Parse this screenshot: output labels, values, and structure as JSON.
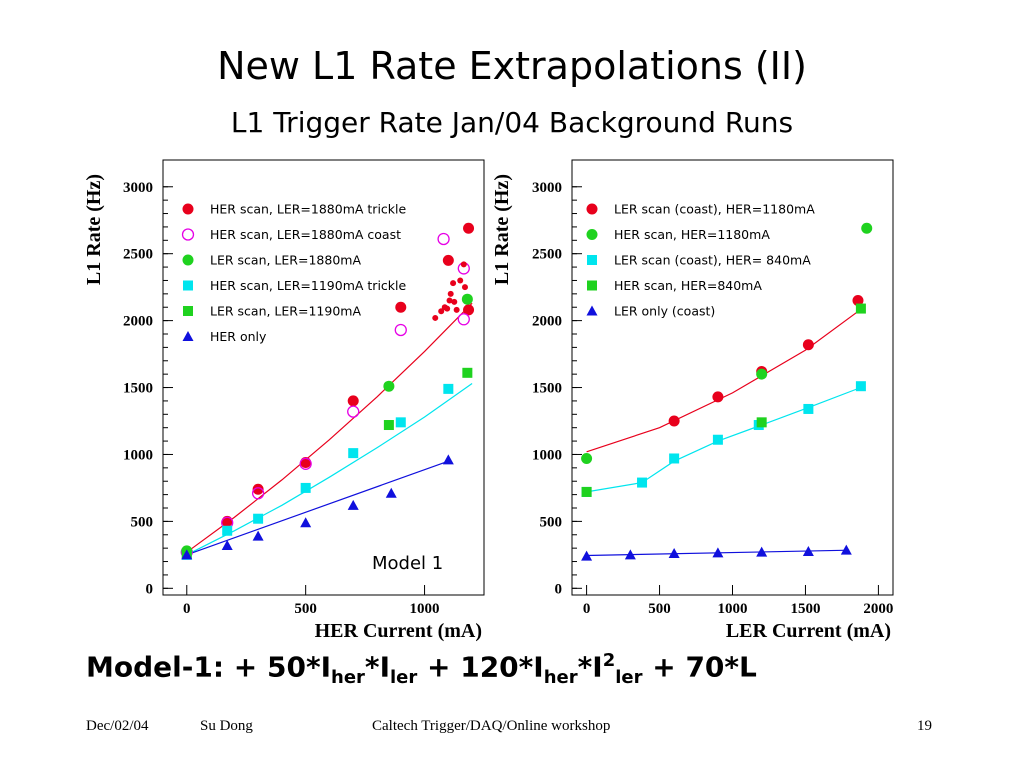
{
  "slide": {
    "title": "New L1 Rate Extrapolations (II)",
    "subtitle": "L1 Trigger Rate Jan/04 Background Runs",
    "formula": {
      "p1": "Model-1:  + 50*I",
      "s1": "her",
      "p2": "*I",
      "s2": "ler",
      "p3": " + 120*I",
      "s3": "her",
      "p4": "*I",
      "sup": "2",
      "s4": "ler",
      "p5": " + 70*L"
    },
    "footer": {
      "date": "Dec/02/04",
      "author": "Su Dong",
      "event": "Caltech Trigger/DAQ/Online workshop",
      "page": "19"
    }
  },
  "chart_data": [
    {
      "type": "scatter",
      "xlabel": "HER Current (mA)",
      "ylabel": "L1 Rate (Hz)",
      "xlim": [
        -100,
        1250
      ],
      "ylim": [
        -50,
        3200
      ],
      "xticks": [
        0,
        500,
        1000
      ],
      "yticks": [
        0,
        500,
        1000,
        1500,
        2000,
        2500,
        3000
      ],
      "legend_position": "top-left",
      "annotation": "Model 1",
      "series": [
        {
          "name": "HER scan, LER=1880mA trickle",
          "marker": "circle",
          "color": "#e8001c",
          "x": [
            0,
            170,
            300,
            500,
            700,
            900,
            1100,
            1185,
            1185
          ],
          "y": [
            270,
            500,
            740,
            940,
            1400,
            2100,
            2450,
            2690,
            2080
          ]
        },
        {
          "name": "HER scan, LER=1880mA coast",
          "marker": "open-circle",
          "color": "#e600e6",
          "x": [
            0,
            170,
            300,
            500,
            700,
            900,
            1080,
            1165,
            1165
          ],
          "y": [
            270,
            490,
            710,
            930,
            1320,
            1930,
            2610,
            2390,
            2010
          ]
        },
        {
          "name": "LER scan, LER=1880mA",
          "marker": "circle",
          "color": "#1fd21f",
          "x": [
            0,
            850,
            1180
          ],
          "y": [
            280,
            1510,
            2160
          ]
        },
        {
          "name": "HER scan, LER=1190mA trickle",
          "marker": "square",
          "color": "#00e5ee",
          "x": [
            0,
            170,
            300,
            500,
            700,
            900,
            1100
          ],
          "y": [
            250,
            430,
            520,
            750,
            1010,
            1240,
            1490
          ]
        },
        {
          "name": "LER scan, LER=1190mA",
          "marker": "square",
          "color": "#1fd21f",
          "x": [
            0,
            850,
            1180
          ],
          "y": [
            260,
            1220,
            1610
          ]
        },
        {
          "name": "HER only",
          "marker": "triangle",
          "color": "#1010dd",
          "x": [
            0,
            170,
            300,
            500,
            700,
            860,
            1100
          ],
          "y": [
            250,
            320,
            390,
            490,
            620,
            710,
            960
          ]
        },
        {
          "marker": "dot",
          "color": "#e8001c",
          "x": [
            1045,
            1070,
            1085,
            1095,
            1105,
            1110,
            1120,
            1125,
            1135,
            1150,
            1165,
            1170
          ],
          "y": [
            2020,
            2070,
            2100,
            2090,
            2150,
            2200,
            2280,
            2140,
            2080,
            2300,
            2420,
            2250
          ]
        }
      ],
      "fit_lines": [
        {
          "color": "#e8001c",
          "x": [
            0,
            200,
            400,
            600,
            800,
            1000,
            1200
          ],
          "y": [
            270,
            530,
            810,
            1110,
            1430,
            1770,
            2130
          ]
        },
        {
          "color": "#00e5ee",
          "x": [
            0,
            200,
            400,
            600,
            800,
            1000,
            1200
          ],
          "y": [
            250,
            430,
            620,
            830,
            1050,
            1280,
            1530
          ]
        },
        {
          "color": "#1010dd",
          "x": [
            0,
            1100
          ],
          "y": [
            250,
            950
          ]
        }
      ]
    },
    {
      "type": "scatter",
      "xlabel": "LER Current (mA)",
      "ylabel": "L1 Rate (Hz)",
      "xlim": [
        -100,
        2100
      ],
      "ylim": [
        -50,
        3200
      ],
      "xticks": [
        0,
        500,
        1000,
        1500,
        2000
      ],
      "yticks": [
        0,
        500,
        1000,
        1500,
        2000,
        2500,
        3000
      ],
      "legend_position": "top-left",
      "series": [
        {
          "name": "LER scan (coast), HER=1180mA",
          "marker": "circle",
          "color": "#e8001c",
          "x": [
            600,
            900,
            1200,
            1520,
            1860
          ],
          "y": [
            1250,
            1430,
            1620,
            1820,
            2150
          ]
        },
        {
          "name": "HER scan, HER=1180mA",
          "marker": "circle",
          "color": "#1fd21f",
          "x": [
            0,
            1200,
            1920
          ],
          "y": [
            970,
            1600,
            2690
          ]
        },
        {
          "name": "LER scan (coast), HER= 840mA",
          "marker": "square",
          "color": "#00e5ee",
          "x": [
            0,
            380,
            600,
            900,
            1180,
            1520,
            1880
          ],
          "y": [
            720,
            790,
            970,
            1110,
            1220,
            1340,
            1510
          ]
        },
        {
          "name": "HER scan, HER=840mA",
          "marker": "square",
          "color": "#1fd21f",
          "x": [
            0,
            1200,
            1880
          ],
          "y": [
            720,
            1240,
            2090
          ]
        },
        {
          "name": "LER only (coast)",
          "marker": "triangle",
          "color": "#1010dd",
          "x": [
            0,
            300,
            600,
            900,
            1200,
            1520,
            1780
          ],
          "y": [
            240,
            250,
            260,
            265,
            270,
            275,
            285
          ]
        }
      ],
      "fit_lines": [
        {
          "color": "#e8001c",
          "x": [
            0,
            500,
            1000,
            1500,
            1900
          ],
          "y": [
            1020,
            1200,
            1460,
            1780,
            2100
          ]
        },
        {
          "color": "#00e5ee",
          "x": [
            0,
            380,
            600,
            900,
            1200,
            1520,
            1880
          ],
          "y": [
            720,
            790,
            950,
            1100,
            1220,
            1350,
            1500
          ]
        },
        {
          "color": "#1010dd",
          "x": [
            0,
            1800
          ],
          "y": [
            245,
            285
          ]
        }
      ]
    }
  ]
}
